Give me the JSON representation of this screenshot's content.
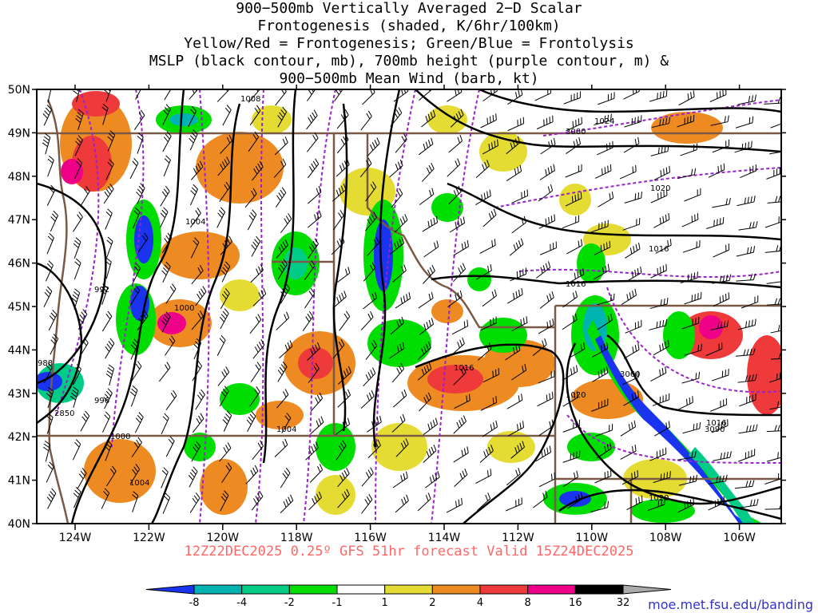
{
  "title_lines": [
    "900−500mb Vertically Averaged 2−D Scalar",
    "Frontogenesis (shaded, K/6hr/100km)",
    "Yellow/Red = Frontogenesis;  Green/Blue = Frontolysis",
    "MSLP (black contour, mb), 700mb height (purple contour, m) &",
    "900−500mb Mean Wind (barb, kt)"
  ],
  "valid_text": "12Z22DEC2025 0.25º GFS 51hr forecast Valid 15Z24DEC2025",
  "credit": "moe.met.fsu.edu/banding",
  "map": {
    "lon_labels": [
      "124W",
      "122W",
      "120W",
      "118W",
      "116W",
      "114W",
      "112W",
      "110W",
      "108W",
      "106W"
    ],
    "lat_labels": [
      "50N",
      "49N",
      "48N",
      "47N",
      "46N",
      "45N",
      "44N",
      "43N",
      "42N",
      "41N",
      "40N"
    ],
    "mslp_labels": [
      "1008",
      "1004",
      "1000",
      "992",
      "988",
      "996",
      "1004",
      "1004",
      "1000",
      "1024",
      "1020",
      "1016",
      "1016",
      "1016",
      "1020",
      "1020",
      "1016"
    ],
    "height_labels": [
      "3000",
      "3060",
      "2850",
      "3090"
    ]
  },
  "colorbar": {
    "labels": [
      "-8",
      "-4",
      "-2",
      "-1",
      "1",
      "2",
      "4",
      "8",
      "16",
      "32"
    ],
    "colors": [
      "#1a33ee",
      "#00b3b3",
      "#00cc88",
      "#00dd00",
      "#ffffff",
      "#e5dc33",
      "#ee8a22",
      "#ee3a3a",
      "#ee0088",
      "#000000",
      "#aaaaaa"
    ]
  }
}
